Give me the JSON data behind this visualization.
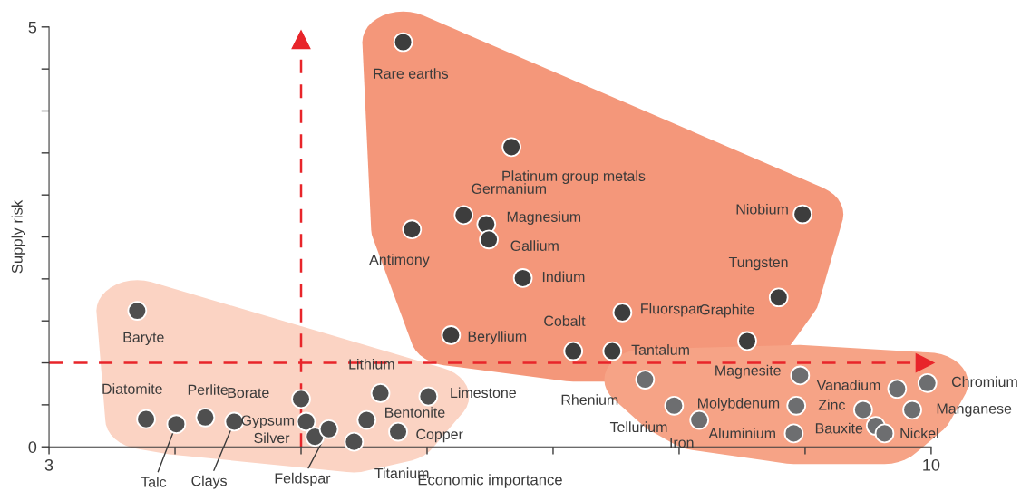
{
  "chart_data": {
    "type": "scatter",
    "xlabel": "Economic importance",
    "ylabel": "Supply risk",
    "xlim": [
      3,
      10
    ],
    "ylim": [
      0,
      5
    ],
    "xticks": [
      3,
      {
        "value": 4,
        "label": null
      },
      {
        "value": 5,
        "label": null
      },
      {
        "value": 6,
        "label": null
      },
      {
        "value": 7,
        "label": null
      },
      {
        "value": 8,
        "label": null
      },
      {
        "value": 9,
        "label": null
      },
      10
    ],
    "yticks": [
      0,
      {
        "value": 0.5,
        "label": null
      },
      {
        "value": 1,
        "label": null
      },
      {
        "value": 1.5,
        "label": null
      },
      {
        "value": 2,
        "label": null
      },
      {
        "value": 2.5,
        "label": null
      },
      {
        "value": 3,
        "label": null
      },
      {
        "value": 3.5,
        "label": null
      },
      {
        "value": 4,
        "label": null
      },
      {
        "value": 4.5,
        "label": null
      },
      5
    ],
    "marker": "circle",
    "grid": false,
    "legend": false,
    "series": [
      {
        "color": "#3d3d3d",
        "x": [
          5.81,
          6.67,
          6.29,
          6.47,
          6.49,
          5.88,
          8.98,
          6.76,
          8.79,
          7.55,
          8.54,
          6.19,
          7.16,
          7.47
        ],
        "values": [
          4.82,
          3.57,
          2.76,
          2.65,
          2.47,
          2.59,
          2.77,
          2.01,
          1.78,
          1.6,
          1.26,
          1.33,
          1.14,
          1.14
        ]
      },
      {
        "color": "#4f4f4f",
        "x": [
          3.7,
          3.77,
          4.01,
          4.24,
          4.47,
          5.0,
          5.04,
          5.11,
          5.22,
          5.42,
          5.52,
          5.63,
          5.77,
          6.01
        ],
        "values": [
          1.62,
          0.33,
          0.27,
          0.35,
          0.3,
          0.57,
          0.3,
          0.12,
          0.21,
          0.06,
          0.32,
          0.64,
          0.18,
          0.6
        ]
      },
      {
        "color": "#6d6e70",
        "x": [
          7.73,
          7.96,
          8.16,
          8.93,
          8.91,
          8.96,
          9.73,
          9.97,
          9.46,
          9.85,
          9.56,
          9.63
        ],
        "values": [
          0.8,
          0.49,
          0.32,
          0.49,
          0.16,
          0.85,
          0.69,
          0.76,
          0.44,
          0.44,
          0.25,
          0.16
        ]
      }
    ],
    "ref_lines": [
      {
        "axis": "x",
        "value": 5,
        "color": "#e8252a",
        "line_style": "dashed"
      },
      {
        "axis": "y",
        "value": 1,
        "color": "#e8252a",
        "line_style": "dashed"
      }
    ],
    "annotations": [
      {
        "text": "Rare earths",
        "x": 5.81,
        "y": 4.82
      },
      {
        "text": "Platinum group metals",
        "x": 6.67,
        "y": 3.57
      },
      {
        "text": "Germanium",
        "x": 6.29,
        "y": 2.76
      },
      {
        "text": "Magnesium",
        "x": 6.47,
        "y": 2.65
      },
      {
        "text": "Gallium",
        "x": 6.49,
        "y": 2.47
      },
      {
        "text": "Antimony",
        "x": 5.88,
        "y": 2.59
      },
      {
        "text": "Niobium",
        "x": 8.98,
        "y": 2.77
      },
      {
        "text": "Indium",
        "x": 6.76,
        "y": 2.01
      },
      {
        "text": "Tungsten",
        "x": 8.79,
        "y": 1.78
      },
      {
        "text": "Fluorspar",
        "x": 7.55,
        "y": 1.6
      },
      {
        "text": "Graphite",
        "x": 8.54,
        "y": 1.26
      },
      {
        "text": "Beryllium",
        "x": 6.19,
        "y": 1.33
      },
      {
        "text": "Cobalt",
        "x": 7.16,
        "y": 1.14
      },
      {
        "text": "Tantalum",
        "x": 7.47,
        "y": 1.14
      },
      {
        "text": "Baryte",
        "x": 3.7,
        "y": 1.62
      },
      {
        "text": "Diatomite",
        "x": 3.77,
        "y": 0.33
      },
      {
        "text": "Talc",
        "x": 4.01,
        "y": 0.27
      },
      {
        "text": "Perlite",
        "x": 4.24,
        "y": 0.35
      },
      {
        "text": "Clays",
        "x": 4.47,
        "y": 0.3
      },
      {
        "text": "Borate",
        "x": 5.0,
        "y": 0.57
      },
      {
        "text": "Gypsum",
        "x": 5.04,
        "y": 0.3
      },
      {
        "text": "Silver",
        "x": 5.11,
        "y": 0.12
      },
      {
        "text": "Feldspar",
        "x": 5.22,
        "y": 0.21
      },
      {
        "text": "Titanium",
        "x": 5.42,
        "y": 0.06
      },
      {
        "text": "Bentonite",
        "x": 5.52,
        "y": 0.32
      },
      {
        "text": "Lithium",
        "x": 5.63,
        "y": 0.64
      },
      {
        "text": "Copper",
        "x": 5.77,
        "y": 0.18
      },
      {
        "text": "Limestone",
        "x": 6.01,
        "y": 0.6
      },
      {
        "text": "Rhenium",
        "x": 7.73,
        "y": 0.8
      },
      {
        "text": "Tellurium",
        "x": 7.96,
        "y": 0.49
      },
      {
        "text": "Iron",
        "x": 8.16,
        "y": 0.32
      },
      {
        "text": "Molybdenum",
        "x": 8.93,
        "y": 0.49
      },
      {
        "text": "Aluminium",
        "x": 8.91,
        "y": 0.16
      },
      {
        "text": "Magnesite",
        "x": 8.96,
        "y": 0.85
      },
      {
        "text": "Vanadium",
        "x": 9.73,
        "y": 0.69
      },
      {
        "text": "Chromium",
        "x": 9.97,
        "y": 0.76
      },
      {
        "text": "Zinc",
        "x": 9.46,
        "y": 0.44
      },
      {
        "text": "Manganese",
        "x": 9.85,
        "y": 0.44
      },
      {
        "text": "Bauxite",
        "x": 9.56,
        "y": 0.25
      },
      {
        "text": "Nickel",
        "x": 9.63,
        "y": 0.16
      }
    ]
  }
}
